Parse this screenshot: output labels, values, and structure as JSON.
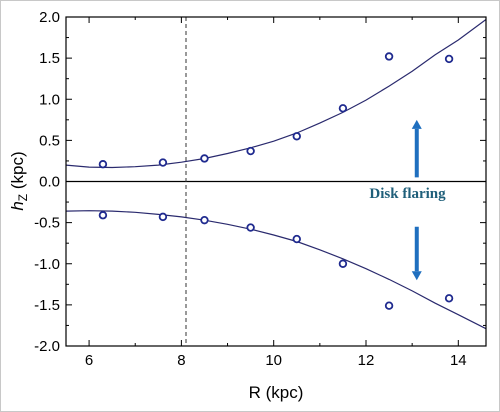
{
  "chart_data": {
    "type": "scatter",
    "xlabel": "R (kpc)",
    "ylabel_main": "h",
    "ylabel_sub": "Z",
    "ylabel_unit": " (kpc)",
    "xlim": [
      5.5,
      14.6
    ],
    "ylim": [
      -2.0,
      2.0
    ],
    "x_ticks": [
      6,
      8,
      10,
      12,
      14
    ],
    "y_ticks": [
      -2.0,
      -1.5,
      -1.0,
      -0.5,
      0.0,
      0.5,
      1.0,
      1.5,
      2.0
    ],
    "y_tick_labels": [
      "-2.0",
      "-1.5",
      "-1.0",
      "-0.5",
      "0.0",
      "0.5",
      "1.0",
      "1.5",
      "2.0"
    ],
    "zero_line": 0.0,
    "reference_line_x": 8.1,
    "series": [
      {
        "x": [
          6.3,
          7.6,
          8.5,
          9.5,
          10.5,
          11.5,
          12.5,
          13.8
        ],
        "y": [
          0.21,
          0.23,
          0.28,
          0.37,
          0.55,
          0.89,
          1.52,
          1.49
        ]
      },
      {
        "x": [
          6.3,
          7.6,
          8.5,
          9.5,
          10.5,
          11.5,
          12.5,
          13.8
        ],
        "y": [
          -0.41,
          -0.43,
          -0.47,
          -0.56,
          -0.7,
          -1.0,
          -1.51,
          -1.42
        ]
      }
    ],
    "fit_curves": [
      {
        "x": [
          5.5,
          6.0,
          6.5,
          7.0,
          7.5,
          8.0,
          8.5,
          9.0,
          9.5,
          10.0,
          10.5,
          11.0,
          11.5,
          12.0,
          12.5,
          13.0,
          13.5,
          14.0,
          14.6
        ],
        "y": [
          0.2,
          0.175,
          0.17,
          0.18,
          0.2,
          0.235,
          0.28,
          0.34,
          0.41,
          0.49,
          0.59,
          0.71,
          0.84,
          0.99,
          1.16,
          1.34,
          1.54,
          1.72,
          1.97
        ]
      },
      {
        "x": [
          5.5,
          6.0,
          6.5,
          7.0,
          7.5,
          8.0,
          8.5,
          9.0,
          9.5,
          10.0,
          10.5,
          11.0,
          11.5,
          12.0,
          12.5,
          13.0,
          13.5,
          14.0,
          14.6
        ],
        "y": [
          -0.36,
          -0.355,
          -0.36,
          -0.375,
          -0.4,
          -0.43,
          -0.47,
          -0.52,
          -0.58,
          -0.65,
          -0.73,
          -0.83,
          -0.94,
          -1.06,
          -1.19,
          -1.33,
          -1.48,
          -1.62,
          -1.79
        ]
      }
    ],
    "annotation": {
      "text": "Disk flaring",
      "x": 12.9,
      "y": -0.2,
      "color": "#1f5f7a"
    },
    "arrows": [
      {
        "x": 13.1,
        "from_y": 0.05,
        "to_y": 0.75,
        "color": "#1f6fbf"
      },
      {
        "x": 13.1,
        "from_y": -0.55,
        "to_y": -1.2,
        "color": "#1f6fbf"
      }
    ],
    "marker_color": "#1f2a8f",
    "curve_color": "#2a2a6e"
  }
}
